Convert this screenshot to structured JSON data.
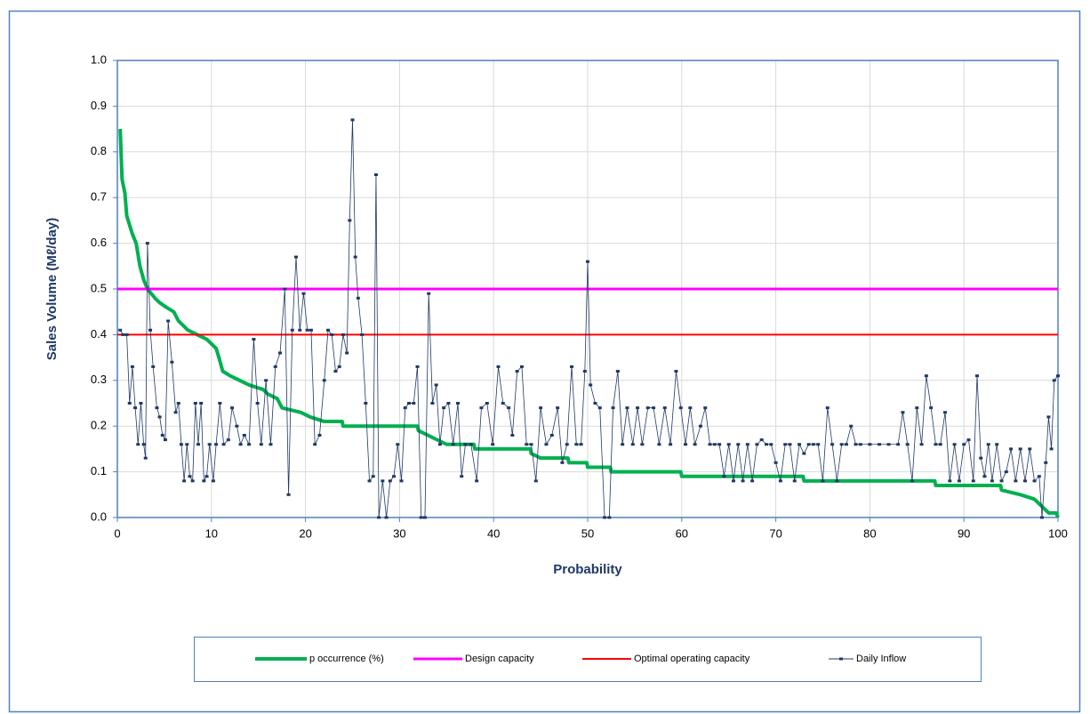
{
  "chart_data": {
    "type": "line",
    "xlabel": "Probability",
    "ylabel": "Sales  Volume (Mℓ/day)",
    "xlim": [
      0,
      100
    ],
    "xticks": [
      0,
      10,
      20,
      30,
      40,
      50,
      60,
      70,
      80,
      90,
      100
    ],
    "ylim": [
      0,
      1
    ],
    "yticks": [
      {
        "value": 0,
        "label": "0.0"
      },
      0.1,
      0.2,
      0.3,
      0.4,
      0.5,
      0.6,
      0.7,
      0.8,
      0.9,
      {
        "value": 1,
        "label": "1.0"
      }
    ],
    "grid": true,
    "legend": "bottom",
    "series": [
      {
        "name": "p occurrence (%)",
        "color": "#00b050",
        "width": 4,
        "marker": false,
        "x": [
          0.3,
          0.5,
          0.8,
          1.0,
          1.3,
          1.6,
          2.0,
          2.4,
          2.8,
          3.2,
          3.6,
          4.0,
          4.5,
          5.2,
          6.0,
          6.5,
          7.0,
          7.5,
          8.5,
          9.5,
          10.0,
          10.5,
          10.8,
          11.2,
          12.0,
          13.0,
          14.0,
          15.5,
          16.0,
          17.0,
          17.5,
          19.5,
          20.5,
          22.0,
          23.9,
          24.0,
          31.9,
          32.0,
          33.0,
          34.0,
          35.0,
          37.9,
          38.0,
          43.9,
          44.0,
          45.0,
          47.9,
          48.0,
          49.9,
          50.0,
          52.4,
          52.5,
          59.9,
          60.0,
          72.9,
          73.0,
          86.9,
          87.0,
          93.9,
          94.0,
          96.0,
          97.5,
          98.0,
          98.5,
          99.0,
          99.8,
          100.0
        ],
        "values": [
          0.85,
          0.74,
          0.71,
          0.66,
          0.64,
          0.62,
          0.6,
          0.55,
          0.52,
          0.5,
          0.49,
          0.48,
          0.47,
          0.46,
          0.45,
          0.43,
          0.42,
          0.41,
          0.4,
          0.39,
          0.38,
          0.37,
          0.35,
          0.32,
          0.31,
          0.3,
          0.29,
          0.28,
          0.27,
          0.26,
          0.24,
          0.23,
          0.22,
          0.21,
          0.21,
          0.2,
          0.2,
          0.19,
          0.18,
          0.17,
          0.16,
          0.16,
          0.15,
          0.15,
          0.14,
          0.13,
          0.13,
          0.12,
          0.12,
          0.11,
          0.11,
          0.1,
          0.1,
          0.09,
          0.09,
          0.08,
          0.08,
          0.07,
          0.07,
          0.06,
          0.05,
          0.04,
          0.03,
          0.02,
          0.01,
          0.01,
          0.0
        ]
      },
      {
        "name": "Design capacity",
        "color": "#ff00ff",
        "width": 3,
        "marker": false,
        "x": [
          0,
          100
        ],
        "values": [
          0.5,
          0.5
        ]
      },
      {
        "name": "Optimal operating capacity",
        "color": "#ff0000",
        "width": 2,
        "marker": false,
        "x": [
          0,
          100
        ],
        "values": [
          0.4,
          0.4
        ]
      },
      {
        "name": "Daily Inflow",
        "color": "#1f3864",
        "width": 0.8,
        "marker": true,
        "x": [
          0.3,
          0.6,
          1,
          1.3,
          1.6,
          1.9,
          2.2,
          2.5,
          2.8,
          3.0,
          3.2,
          3.5,
          3.8,
          4.2,
          4.5,
          4.8,
          5.1,
          5.4,
          5.8,
          6.2,
          6.5,
          6.8,
          7.1,
          7.4,
          7.7,
          8,
          8.3,
          8.6,
          8.9,
          9.2,
          9.5,
          9.8,
          10.2,
          10.5,
          10.9,
          11.3,
          11.8,
          12.2,
          12.7,
          13.1,
          13.5,
          14,
          14.5,
          14.9,
          15.3,
          15.8,
          16.3,
          16.8,
          17.3,
          17.8,
          18.2,
          18.6,
          19,
          19.4,
          19.8,
          20.2,
          20.6,
          21,
          21.5,
          22,
          22.4,
          22.8,
          23.2,
          23.6,
          24,
          24.4,
          24.7,
          25,
          25.3,
          25.6,
          26,
          26.4,
          26.8,
          27.2,
          27.5,
          27.8,
          28.2,
          28.6,
          29,
          29.4,
          29.8,
          30.2,
          30.6,
          31,
          31.5,
          31.9,
          32.3,
          32.7,
          33.1,
          33.5,
          33.9,
          34.3,
          34.7,
          35.2,
          35.7,
          36.2,
          36.6,
          37,
          37.6,
          38.2,
          38.7,
          39.3,
          39.9,
          40.5,
          41,
          41.6,
          42,
          42.5,
          43,
          43.5,
          44,
          44.5,
          45,
          45.6,
          46.2,
          46.8,
          47.3,
          47.8,
          48.3,
          48.8,
          49.3,
          49.7,
          50,
          50.3,
          50.8,
          51.3,
          51.8,
          52.3,
          52.7,
          53.2,
          53.7,
          54.2,
          54.8,
          55.3,
          55.8,
          56.4,
          57,
          57.6,
          58.2,
          58.8,
          59.4,
          59.9,
          60.4,
          60.9,
          61.4,
          62,
          62.5,
          63,
          63.5,
          64,
          64.5,
          65,
          65.5,
          66,
          66.5,
          67,
          67.5,
          68,
          68.5,
          69,
          69.5,
          70,
          70.5,
          71,
          71.5,
          72,
          72.5,
          73,
          73.5,
          74,
          74.5,
          75,
          75.5,
          76,
          76.5,
          77,
          77.5,
          78,
          78.5,
          79,
          80,
          81,
          82,
          83,
          83.5,
          84,
          84.5,
          85,
          85.5,
          86,
          86.5,
          87,
          87.5,
          88,
          88.5,
          89,
          89.5,
          90,
          90.5,
          91,
          91.4,
          91.8,
          92.2,
          92.6,
          93,
          93.5,
          94,
          94.5,
          95,
          95.5,
          96,
          96.5,
          97,
          97.5,
          98,
          98.3,
          98.7,
          99,
          99.3,
          99.6,
          100
        ],
        "values": [
          0.41,
          0.4,
          0.4,
          0.25,
          0.33,
          0.24,
          0.16,
          0.25,
          0.16,
          0.13,
          0.6,
          0.41,
          0.33,
          0.24,
          0.22,
          0.18,
          0.17,
          0.43,
          0.34,
          0.23,
          0.25,
          0.16,
          0.08,
          0.16,
          0.09,
          0.08,
          0.25,
          0.16,
          0.25,
          0.08,
          0.09,
          0.16,
          0.08,
          0.16,
          0.25,
          0.16,
          0.17,
          0.24,
          0.2,
          0.16,
          0.18,
          0.16,
          0.39,
          0.25,
          0.16,
          0.3,
          0.16,
          0.33,
          0.36,
          0.5,
          0.05,
          0.41,
          0.57,
          0.41,
          0.49,
          0.41,
          0.41,
          0.16,
          0.18,
          0.3,
          0.41,
          0.4,
          0.32,
          0.33,
          0.4,
          0.36,
          0.65,
          0.87,
          0.57,
          0.48,
          0.4,
          0.25,
          0.08,
          0.09,
          0.75,
          0.0,
          0.08,
          0.0,
          0.08,
          0.09,
          0.16,
          0.08,
          0.24,
          0.25,
          0.25,
          0.33,
          0.0,
          0.0,
          0.49,
          0.25,
          0.29,
          0.16,
          0.24,
          0.25,
          0.16,
          0.25,
          0.09,
          0.16,
          0.16,
          0.08,
          0.24,
          0.25,
          0.16,
          0.33,
          0.25,
          0.24,
          0.18,
          0.32,
          0.33,
          0.16,
          0.16,
          0.08,
          0.24,
          0.16,
          0.18,
          0.24,
          0.12,
          0.16,
          0.33,
          0.16,
          0.16,
          0.32,
          0.56,
          0.29,
          0.25,
          0.24,
          0.0,
          0.0,
          0.24,
          0.32,
          0.16,
          0.24,
          0.16,
          0.24,
          0.16,
          0.24,
          0.24,
          0.16,
          0.24,
          0.16,
          0.32,
          0.24,
          0.16,
          0.24,
          0.16,
          0.2,
          0.24,
          0.16,
          0.16,
          0.16,
          0.09,
          0.16,
          0.08,
          0.16,
          0.08,
          0.16,
          0.08,
          0.16,
          0.17,
          0.16,
          0.16,
          0.12,
          0.08,
          0.16,
          0.16,
          0.08,
          0.16,
          0.14,
          0.16,
          0.16,
          0.16,
          0.08,
          0.24,
          0.16,
          0.08,
          0.16,
          0.16,
          0.2,
          0.16,
          0.16,
          0.16,
          0.16,
          0.16,
          0.16,
          0.23,
          0.16,
          0.08,
          0.24,
          0.16,
          0.31,
          0.24,
          0.16,
          0.16,
          0.23,
          0.08,
          0.16,
          0.08,
          0.16,
          0.17,
          0.08,
          0.31,
          0.13,
          0.09,
          0.16,
          0.08,
          0.16,
          0.08,
          0.1,
          0.15,
          0.08,
          0.15,
          0.08,
          0.15,
          0.08,
          0.09,
          0.0,
          0.12,
          0.22,
          0.15,
          0.3,
          0.31
        ]
      }
    ]
  }
}
